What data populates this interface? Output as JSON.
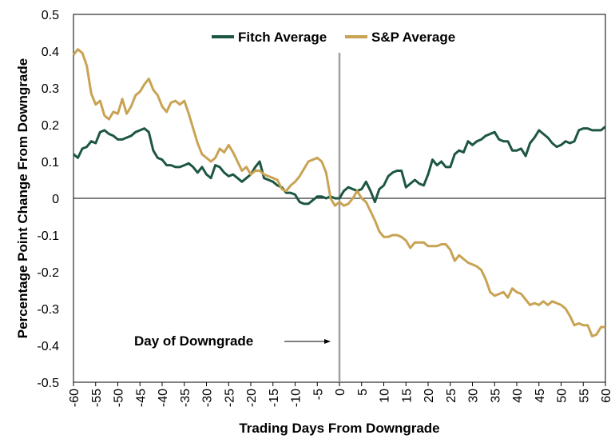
{
  "chart_data": {
    "type": "line",
    "xlabel": "Trading Days From Downgrade",
    "ylabel": "Percentage Point Change From Downgrade",
    "xlim": [
      -60,
      60
    ],
    "ylim": [
      -0.5,
      0.5
    ],
    "x_ticks": [
      "-60",
      "-55",
      "-50",
      "-45",
      "-40",
      "-35",
      "-30",
      "-25",
      "-20",
      "-15",
      "-10",
      "-5",
      "0",
      "5",
      "10",
      "15",
      "20",
      "25",
      "30",
      "35",
      "40",
      "45",
      "50",
      "55",
      "60"
    ],
    "y_ticks": [
      "0.5",
      "0.4",
      "0.3",
      "0.2",
      "0.1",
      "0",
      "-0.1",
      "-0.2",
      "-0.3",
      "-0.4",
      "-0.5"
    ],
    "legend_position": "top-center",
    "annotation": "Day of Downgrade",
    "colors": {
      "fitch": "#1d5741",
      "sp": "#c9a354",
      "vline": "#a0a0a0"
    },
    "series": [
      {
        "name": "Fitch Average",
        "x": [
          -60,
          -59,
          -58,
          -57,
          -56,
          -55,
          -54,
          -53,
          -52,
          -51,
          -50,
          -49,
          -48,
          -47,
          -46,
          -45,
          -44,
          -43,
          -42,
          -41,
          -40,
          -39,
          -38,
          -37,
          -36,
          -35,
          -34,
          -33,
          -32,
          -31,
          -30,
          -29,
          -28,
          -27,
          -26,
          -25,
          -24,
          -23,
          -22,
          -21,
          -20,
          -19,
          -18,
          -17,
          -16,
          -15,
          -14,
          -13,
          -12,
          -11,
          -10,
          -9,
          -8,
          -7,
          -6,
          -5,
          -4,
          -3,
          -2,
          -1,
          0,
          1,
          2,
          3,
          4,
          5,
          6,
          7,
          8,
          9,
          10,
          11,
          12,
          13,
          14,
          15,
          16,
          17,
          18,
          19,
          20,
          21,
          22,
          23,
          24,
          25,
          26,
          27,
          28,
          29,
          30,
          31,
          32,
          33,
          34,
          35,
          36,
          37,
          38,
          39,
          40,
          41,
          42,
          43,
          44,
          45,
          46,
          47,
          48,
          49,
          50,
          51,
          52,
          53,
          54,
          55,
          56,
          57,
          58,
          59,
          60
        ],
        "values": [
          0.12,
          0.11,
          0.135,
          0.14,
          0.155,
          0.15,
          0.18,
          0.185,
          0.175,
          0.17,
          0.16,
          0.16,
          0.165,
          0.17,
          0.18,
          0.185,
          0.19,
          0.18,
          0.13,
          0.11,
          0.105,
          0.09,
          0.09,
          0.085,
          0.085,
          0.09,
          0.095,
          0.085,
          0.07,
          0.085,
          0.065,
          0.055,
          0.09,
          0.085,
          0.07,
          0.06,
          0.065,
          0.055,
          0.045,
          0.055,
          0.065,
          0.085,
          0.1,
          0.055,
          0.05,
          0.045,
          0.035,
          0.03,
          0.015,
          0.015,
          0.01,
          -0.01,
          -0.015,
          -0.015,
          -0.005,
          0.005,
          0.005,
          0.0,
          0.005,
          0.0,
          0.0,
          0.02,
          0.03,
          0.025,
          0.02,
          0.025,
          0.045,
          0.02,
          -0.01,
          0.025,
          0.035,
          0.06,
          0.07,
          0.075,
          0.075,
          0.03,
          0.04,
          0.05,
          0.04,
          0.035,
          0.065,
          0.105,
          0.09,
          0.1,
          0.085,
          0.085,
          0.12,
          0.13,
          0.125,
          0.155,
          0.145,
          0.155,
          0.16,
          0.17,
          0.175,
          0.18,
          0.16,
          0.155,
          0.155,
          0.13,
          0.13,
          0.135,
          0.115,
          0.15,
          0.165,
          0.185,
          0.175,
          0.165,
          0.15,
          0.14,
          0.145,
          0.155,
          0.15,
          0.155,
          0.185,
          0.19,
          0.19,
          0.185,
          0.185,
          0.185,
          0.195
        ]
      },
      {
        "name": "S&P Average",
        "x": [
          -60,
          -59,
          -58,
          -57,
          -56,
          -55,
          -54,
          -53,
          -52,
          -51,
          -50,
          -49,
          -48,
          -47,
          -46,
          -45,
          -44,
          -43,
          -42,
          -41,
          -40,
          -39,
          -38,
          -37,
          -36,
          -35,
          -34,
          -33,
          -32,
          -31,
          -30,
          -29,
          -28,
          -27,
          -26,
          -25,
          -24,
          -23,
          -22,
          -21,
          -20,
          -19,
          -18,
          -17,
          -16,
          -15,
          -14,
          -13,
          -12,
          -11,
          -10,
          -9,
          -8,
          -7,
          -6,
          -5,
          -4,
          -3,
          -2,
          -1,
          0,
          1,
          2,
          3,
          4,
          5,
          6,
          7,
          8,
          9,
          10,
          11,
          12,
          13,
          14,
          15,
          16,
          17,
          18,
          19,
          20,
          21,
          22,
          23,
          24,
          25,
          26,
          27,
          28,
          29,
          30,
          31,
          32,
          33,
          34,
          35,
          36,
          37,
          38,
          39,
          40,
          41,
          42,
          43,
          44,
          45,
          46,
          47,
          48,
          49,
          50,
          51,
          52,
          53,
          54,
          55,
          56,
          57,
          58,
          59,
          60
        ],
        "values": [
          0.39,
          0.405,
          0.395,
          0.36,
          0.285,
          0.255,
          0.265,
          0.225,
          0.215,
          0.235,
          0.23,
          0.27,
          0.23,
          0.25,
          0.28,
          0.29,
          0.31,
          0.325,
          0.295,
          0.28,
          0.25,
          0.235,
          0.26,
          0.265,
          0.255,
          0.265,
          0.23,
          0.19,
          0.15,
          0.12,
          0.11,
          0.1,
          0.11,
          0.135,
          0.125,
          0.145,
          0.125,
          0.1,
          0.075,
          0.085,
          0.065,
          0.075,
          0.075,
          0.065,
          0.06,
          0.055,
          0.05,
          0.025,
          0.02,
          0.035,
          0.045,
          0.06,
          0.08,
          0.1,
          0.105,
          0.11,
          0.1,
          0.07,
          0.0,
          -0.02,
          -0.01,
          -0.02,
          -0.015,
          0.0,
          0.02,
          0.0,
          -0.01,
          -0.035,
          -0.06,
          -0.09,
          -0.105,
          -0.105,
          -0.1,
          -0.1,
          -0.105,
          -0.115,
          -0.135,
          -0.12,
          -0.12,
          -0.12,
          -0.13,
          -0.13,
          -0.13,
          -0.125,
          -0.125,
          -0.14,
          -0.17,
          -0.155,
          -0.165,
          -0.175,
          -0.18,
          -0.185,
          -0.195,
          -0.22,
          -0.255,
          -0.265,
          -0.26,
          -0.255,
          -0.27,
          -0.245,
          -0.255,
          -0.26,
          -0.275,
          -0.29,
          -0.285,
          -0.29,
          -0.28,
          -0.29,
          -0.28,
          -0.285,
          -0.29,
          -0.3,
          -0.32,
          -0.345,
          -0.34,
          -0.345,
          -0.345,
          -0.375,
          -0.37,
          -0.35,
          -0.35
        ]
      }
    ]
  }
}
